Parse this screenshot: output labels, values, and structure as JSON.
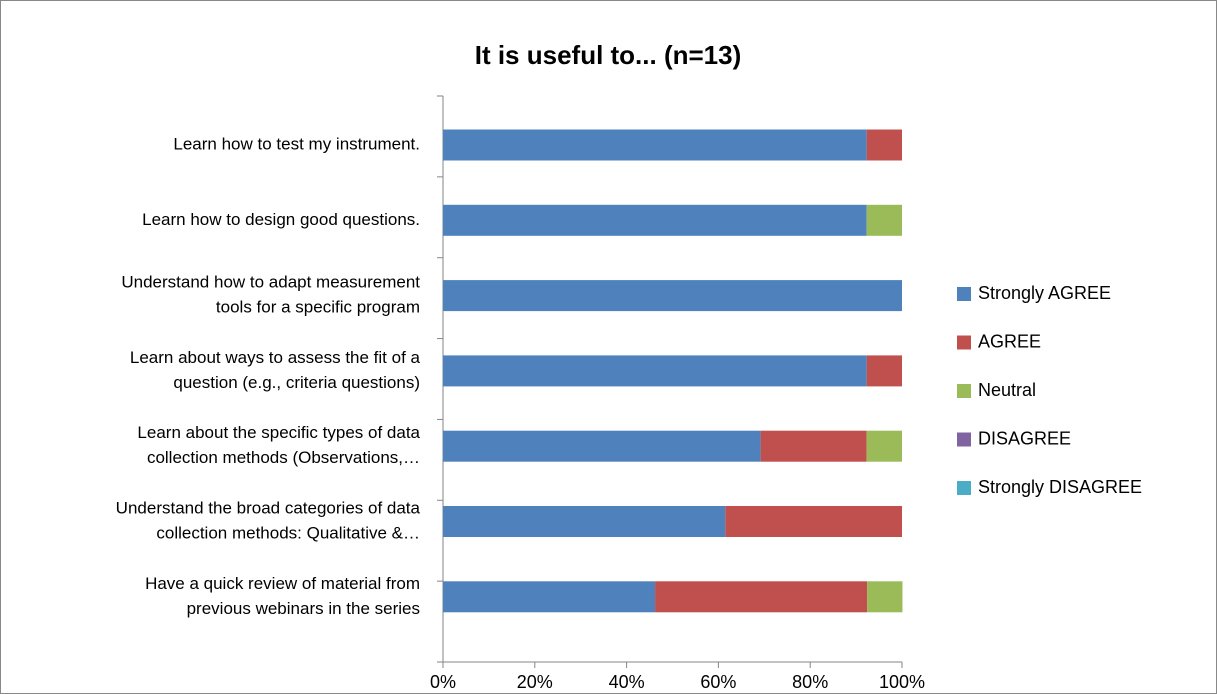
{
  "chart_data": {
    "type": "stacked-bar-horizontal",
    "title": "It is useful to... (n=13)",
    "categories": [
      [
        "Learn how to test my instrument."
      ],
      [
        "Learn how to design good questions."
      ],
      [
        "Understand how to adapt measurement",
        "tools for a specific program"
      ],
      [
        "Learn about ways to assess the fit of a",
        "question (e.g., criteria questions)"
      ],
      [
        "Learn about the specific types of data",
        "collection methods (Observations,…"
      ],
      [
        "Understand the broad categories of data",
        "collection methods: Qualitative &…"
      ],
      [
        "Have a quick review of material from",
        "previous webinars in the series"
      ]
    ],
    "series": [
      {
        "name": "Strongly AGREE",
        "color": "#4f81bd",
        "values": [
          92.3,
          92.3,
          100,
          92.3,
          69.2,
          61.5,
          46.2
        ]
      },
      {
        "name": "AGREE",
        "color": "#c0504d",
        "values": [
          7.7,
          0,
          0,
          7.7,
          23.1,
          38.5,
          46.2
        ]
      },
      {
        "name": "Neutral",
        "color": "#9bbb59",
        "values": [
          0,
          7.7,
          0,
          0,
          7.7,
          0,
          7.7
        ]
      },
      {
        "name": "DISAGREE",
        "color": "#8064a2",
        "values": [
          0,
          0,
          0,
          0,
          0,
          0,
          0
        ]
      },
      {
        "name": "Strongly DISAGREE",
        "color": "#4bacc6",
        "values": [
          0,
          0,
          0,
          0,
          0,
          0,
          0
        ]
      }
    ],
    "xlim": [
      0,
      100
    ],
    "xticks": [
      {
        "value": 0,
        "label": "0%"
      },
      {
        "value": 20,
        "label": "20%"
      },
      {
        "value": 40,
        "label": "40%"
      },
      {
        "value": 60,
        "label": "60%"
      },
      {
        "value": 80,
        "label": "80%"
      },
      {
        "value": 100,
        "label": "100%"
      }
    ],
    "legend": "right"
  }
}
